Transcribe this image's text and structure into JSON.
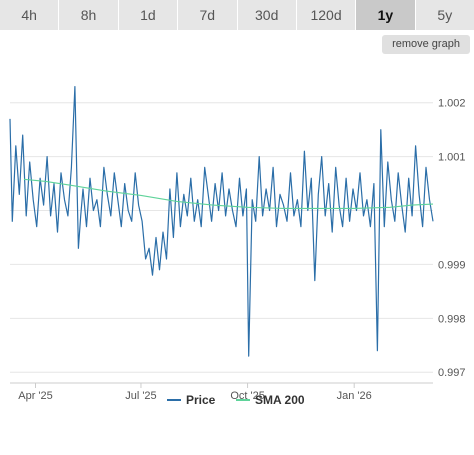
{
  "range_tabs": [
    {
      "label": "4h",
      "active": false
    },
    {
      "label": "8h",
      "active": false
    },
    {
      "label": "1d",
      "active": false
    },
    {
      "label": "7d",
      "active": false
    },
    {
      "label": "30d",
      "active": false
    },
    {
      "label": "120d",
      "active": false
    },
    {
      "label": "1y",
      "active": true
    },
    {
      "label": "5y",
      "active": false
    }
  ],
  "remove_graph_label": "remove graph",
  "colors": {
    "price": "#2b6ea8",
    "sma": "#5fd39a",
    "grid": "#e6e6e6"
  },
  "chart_data": {
    "type": "line",
    "x_range": [
      "2025-03-10",
      "2026-03-10"
    ],
    "ylim": [
      0.9968,
      1.0027
    ],
    "yticks": [
      0.997,
      0.998,
      0.999,
      1.0,
      1.001,
      1.002
    ],
    "ytick_labels": [
      "0.997",
      "0.998",
      "0.999",
      "",
      "1.001",
      "1.002"
    ],
    "xticks": [
      {
        "date": "2025-04-01",
        "label": "Apr '25"
      },
      {
        "date": "2025-07-01",
        "label": "Jul '25"
      },
      {
        "date": "2025-10-01",
        "label": "Oct '25"
      },
      {
        "date": "2026-01-01",
        "label": "Jan '26"
      }
    ],
    "legend": [
      "Price",
      "SMA 200"
    ],
    "legend_position": "bottom",
    "grid": true,
    "series": [
      {
        "name": "Price",
        "x": [
          "2025-03-10",
          "2025-03-12",
          "2025-03-15",
          "2025-03-18",
          "2025-03-21",
          "2025-03-24",
          "2025-03-27",
          "2025-03-30",
          "2025-04-02",
          "2025-04-05",
          "2025-04-08",
          "2025-04-11",
          "2025-04-14",
          "2025-04-17",
          "2025-04-20",
          "2025-04-23",
          "2025-04-26",
          "2025-04-29",
          "2025-05-02",
          "2025-05-05",
          "2025-05-08",
          "2025-05-10",
          "2025-05-12",
          "2025-05-15",
          "2025-05-18",
          "2025-05-21",
          "2025-05-24",
          "2025-05-27",
          "2025-05-30",
          "2025-06-02",
          "2025-06-05",
          "2025-06-08",
          "2025-06-11",
          "2025-06-14",
          "2025-06-17",
          "2025-06-20",
          "2025-06-23",
          "2025-06-26",
          "2025-06-29",
          "2025-07-02",
          "2025-07-05",
          "2025-07-08",
          "2025-07-11",
          "2025-07-14",
          "2025-07-17",
          "2025-07-20",
          "2025-07-23",
          "2025-07-26",
          "2025-07-29",
          "2025-08-01",
          "2025-08-04",
          "2025-08-07",
          "2025-08-10",
          "2025-08-13",
          "2025-08-16",
          "2025-08-19",
          "2025-08-22",
          "2025-08-25",
          "2025-08-28",
          "2025-08-31",
          "2025-09-03",
          "2025-09-06",
          "2025-09-09",
          "2025-09-12",
          "2025-09-15",
          "2025-09-18",
          "2025-09-21",
          "2025-09-24",
          "2025-09-27",
          "2025-09-30",
          "2025-10-02",
          "2025-10-05",
          "2025-10-08",
          "2025-10-11",
          "2025-10-14",
          "2025-10-17",
          "2025-10-20",
          "2025-10-23",
          "2025-10-26",
          "2025-10-29",
          "2025-11-01",
          "2025-11-04",
          "2025-11-07",
          "2025-11-10",
          "2025-11-13",
          "2025-11-16",
          "2025-11-19",
          "2025-11-22",
          "2025-11-25",
          "2025-11-28",
          "2025-12-01",
          "2025-12-04",
          "2025-12-07",
          "2025-12-10",
          "2025-12-13",
          "2025-12-16",
          "2025-12-19",
          "2025-12-22",
          "2025-12-25",
          "2025-12-28",
          "2025-12-31",
          "2026-01-03",
          "2026-01-06",
          "2026-01-09",
          "2026-01-12",
          "2026-01-15",
          "2026-01-18",
          "2026-01-21",
          "2026-01-24",
          "2026-01-27",
          "2026-01-30",
          "2026-02-02",
          "2026-02-05",
          "2026-02-08",
          "2026-02-11",
          "2026-02-14",
          "2026-02-17",
          "2026-02-20",
          "2026-02-23",
          "2026-02-26",
          "2026-03-01",
          "2026-03-04",
          "2026-03-07",
          "2026-03-10"
        ],
        "y": [
          1.0017,
          0.9998,
          1.0012,
          1.0003,
          1.0014,
          0.9999,
          1.0009,
          1.0002,
          0.9997,
          1.0006,
          1.0001,
          1.001,
          0.9999,
          1.0005,
          0.9996,
          1.0007,
          1.0002,
          0.9999,
          1.0008,
          1.0023,
          0.9993,
          0.9999,
          1.0004,
          0.9997,
          1.0006,
          1.0,
          1.0002,
          0.9997,
          1.0008,
          1.0003,
          0.9999,
          1.0007,
          1.0002,
          0.9997,
          1.0005,
          1.0,
          0.9998,
          1.0007,
          1.0001,
          0.9998,
          0.9991,
          0.9993,
          0.9988,
          0.9995,
          0.9989,
          0.9996,
          0.9991,
          1.0004,
          0.9995,
          1.0007,
          0.9997,
          1.0003,
          0.9999,
          1.0006,
          0.9998,
          1.0002,
          0.9997,
          1.0008,
          1.0003,
          0.9998,
          1.0005,
          1.0,
          1.0007,
          0.9999,
          1.0004,
          1.0,
          0.9997,
          1.0006,
          0.9999,
          1.0004,
          0.9973,
          1.0002,
          0.9998,
          1.001,
          0.9999,
          1.0004,
          1.0,
          1.0008,
          0.9997,
          1.0003,
          1.0001,
          0.9998,
          1.0007,
          0.9999,
          1.0002,
          0.9997,
          1.0011,
          1.0,
          1.0006,
          0.9987,
          1.0003,
          1.001,
          0.9999,
          1.0005,
          0.9996,
          1.0008,
          1.0001,
          0.9997,
          1.0006,
          0.9998,
          1.0004,
          1.0,
          1.0007,
          0.9999,
          1.0002,
          0.9997,
          1.0005,
          0.9974,
          1.0015,
          0.9997,
          1.0009,
          1.0002,
          0.9998,
          1.0007,
          1.0001,
          0.9996,
          1.0006,
          0.9999,
          1.0012,
          1.0003,
          0.9997,
          1.0008,
          1.0002,
          0.9998
        ]
      },
      {
        "name": "SMA 200",
        "x": [
          "2025-03-22",
          "2025-04-10",
          "2025-05-01",
          "2025-06-01",
          "2025-07-01",
          "2025-08-01",
          "2025-09-01",
          "2025-10-01",
          "2025-11-01",
          "2025-12-01",
          "2026-01-01",
          "2026-02-01",
          "2026-02-20",
          "2026-03-10"
        ],
        "y": [
          1.00058,
          1.00054,
          1.00047,
          1.00036,
          1.00028,
          1.00017,
          1.0001,
          1.00006,
          1.00004,
          1.00004,
          1.00004,
          1.00006,
          1.0001,
          1.00012
        ]
      }
    ]
  }
}
